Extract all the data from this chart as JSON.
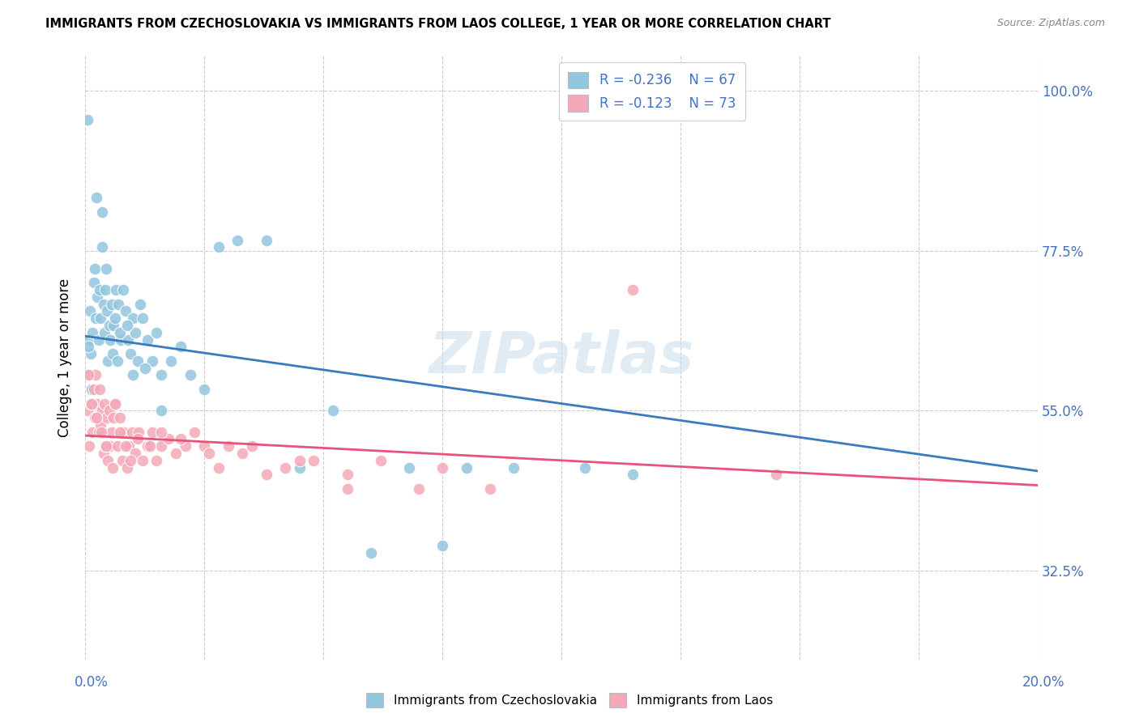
{
  "title": "IMMIGRANTS FROM CZECHOSLOVAKIA VS IMMIGRANTS FROM LAOS COLLEGE, 1 YEAR OR MORE CORRELATION CHART",
  "source": "Source: ZipAtlas.com",
  "ylabel": "College, 1 year or more",
  "right_ytick_labels": [
    "32.5%",
    "55.0%",
    "77.5%",
    "100.0%"
  ],
  "right_ytick_values": [
    32.5,
    55.0,
    77.5,
    100.0
  ],
  "xmin": 0.0,
  "xmax": 20.0,
  "ymin": 20.0,
  "ymax": 105.0,
  "legend_r1": "R = -0.236",
  "legend_n1": "N = 67",
  "legend_r2": "R = -0.123",
  "legend_n2": "N = 73",
  "color_czech": "#92c5de",
  "color_laos": "#f4a9b8",
  "trend_color_czech": "#3a7abf",
  "trend_color_laos": "#e8537a",
  "watermark": "ZIPatlas",
  "czech_trend_x0": 0.0,
  "czech_trend_y0": 65.5,
  "czech_trend_x1": 20.0,
  "czech_trend_y1": 46.5,
  "laos_trend_x0": 0.0,
  "laos_trend_y0": 51.5,
  "laos_trend_x1": 20.0,
  "laos_trend_y1": 44.5,
  "czech_x": [
    0.05,
    0.08,
    0.1,
    0.12,
    0.15,
    0.18,
    0.2,
    0.22,
    0.25,
    0.28,
    0.3,
    0.32,
    0.35,
    0.38,
    0.4,
    0.42,
    0.45,
    0.48,
    0.5,
    0.52,
    0.55,
    0.58,
    0.6,
    0.65,
    0.68,
    0.7,
    0.75,
    0.8,
    0.85,
    0.9,
    0.95,
    1.0,
    1.05,
    1.1,
    1.15,
    1.2,
    1.3,
    1.4,
    1.5,
    1.6,
    1.8,
    2.0,
    2.2,
    2.5,
    2.8,
    3.2,
    3.8,
    4.5,
    5.2,
    6.0,
    6.8,
    7.5,
    8.0,
    9.0,
    10.5,
    11.5,
    0.06,
    0.14,
    0.24,
    0.36,
    0.44,
    0.62,
    0.72,
    0.88,
    1.0,
    1.25,
    1.6
  ],
  "czech_y": [
    96.0,
    65.0,
    69.0,
    63.0,
    66.0,
    73.0,
    75.0,
    68.0,
    71.0,
    65.0,
    72.0,
    68.0,
    78.0,
    70.0,
    66.0,
    72.0,
    69.0,
    62.0,
    67.0,
    65.0,
    70.0,
    63.0,
    67.0,
    72.0,
    62.0,
    70.0,
    65.0,
    72.0,
    69.0,
    65.0,
    63.0,
    68.0,
    66.0,
    62.0,
    70.0,
    68.0,
    65.0,
    62.0,
    66.0,
    60.0,
    62.0,
    64.0,
    60.0,
    58.0,
    78.0,
    79.0,
    79.0,
    47.0,
    55.0,
    35.0,
    47.0,
    36.0,
    47.0,
    47.0,
    47.0,
    46.0,
    64.0,
    58.0,
    85.0,
    83.0,
    75.0,
    68.0,
    66.0,
    67.0,
    60.0,
    61.0,
    55.0
  ],
  "laos_x": [
    0.05,
    0.08,
    0.1,
    0.12,
    0.15,
    0.18,
    0.2,
    0.22,
    0.25,
    0.28,
    0.3,
    0.32,
    0.35,
    0.38,
    0.4,
    0.42,
    0.45,
    0.48,
    0.5,
    0.52,
    0.55,
    0.58,
    0.6,
    0.65,
    0.68,
    0.72,
    0.78,
    0.82,
    0.88,
    0.92,
    0.98,
    1.05,
    1.12,
    1.2,
    1.3,
    1.4,
    1.5,
    1.6,
    1.75,
    1.9,
    2.1,
    2.3,
    2.5,
    2.8,
    3.0,
    3.3,
    3.8,
    4.2,
    4.8,
    5.5,
    6.2,
    7.0,
    8.5,
    0.07,
    0.14,
    0.24,
    0.34,
    0.44,
    0.62,
    0.72,
    0.85,
    0.95,
    1.1,
    1.35,
    1.6,
    2.0,
    2.6,
    3.5,
    4.5,
    5.5,
    7.5,
    11.5,
    14.5
  ],
  "laos_y": [
    55.0,
    50.0,
    60.0,
    56.0,
    52.0,
    58.0,
    54.0,
    60.0,
    56.0,
    52.0,
    58.0,
    53.0,
    55.0,
    49.0,
    56.0,
    50.0,
    54.0,
    48.0,
    55.0,
    50.0,
    52.0,
    47.0,
    54.0,
    56.0,
    50.0,
    54.0,
    48.0,
    52.0,
    47.0,
    50.0,
    52.0,
    49.0,
    52.0,
    48.0,
    50.0,
    52.0,
    48.0,
    50.0,
    51.0,
    49.0,
    50.0,
    52.0,
    50.0,
    47.0,
    50.0,
    49.0,
    46.0,
    47.0,
    48.0,
    46.0,
    48.0,
    44.0,
    44.0,
    60.0,
    56.0,
    54.0,
    52.0,
    50.0,
    56.0,
    52.0,
    50.0,
    48.0,
    51.0,
    50.0,
    52.0,
    51.0,
    49.0,
    50.0,
    48.0,
    44.0,
    47.0,
    72.0,
    46.0
  ],
  "grid_yticks": [
    32.5,
    55.0,
    77.5,
    100.0
  ],
  "xtick_positions": [
    0.0,
    2.5,
    5.0,
    7.5,
    10.0,
    12.5,
    15.0,
    17.5,
    20.0
  ]
}
